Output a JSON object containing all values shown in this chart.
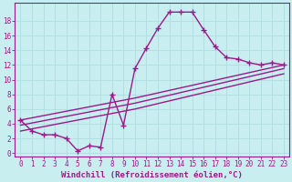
{
  "background_color": "#c8eef0",
  "grid_color": "#b0dde0",
  "line_color": "#9b1a8a",
  "marker": "+",
  "markersize": 4,
  "linewidth": 1.0,
  "xlabel": "Windchill (Refroidissement éolien,°C)",
  "xlabel_fontsize": 6.5,
  "ytick_values": [
    0,
    2,
    4,
    6,
    8,
    10,
    12,
    14,
    16,
    18
  ],
  "xticklabels": [
    "0",
    "1",
    "2",
    "3",
    "4",
    "5",
    "6",
    "7",
    "8",
    "9",
    "10",
    "11",
    "12",
    "13",
    "14",
    "15",
    "16",
    "17",
    "18",
    "19",
    "20",
    "21",
    "22",
    "23"
  ],
  "ylim": [
    -0.5,
    20.5
  ],
  "xlim": [
    -0.5,
    23.5
  ],
  "series1_x": [
    0,
    1,
    2,
    3,
    4,
    5,
    6,
    7,
    8,
    9,
    10,
    11,
    12,
    13,
    14,
    15,
    16,
    17,
    18,
    19,
    20,
    21,
    22,
    23
  ],
  "series1_y": [
    4.5,
    3.0,
    2.5,
    2.5,
    2.0,
    0.3,
    1.0,
    0.8,
    8.0,
    3.8,
    11.5,
    14.3,
    17.0,
    19.2,
    19.2,
    19.2,
    16.8,
    14.5,
    13.0,
    12.8,
    12.3,
    12.0,
    12.3,
    12.0
  ],
  "series2_x": [
    0,
    10,
    23
  ],
  "series2_y": [
    4.5,
    7.5,
    12.0
  ],
  "series3_x": [
    0,
    10,
    23
  ],
  "series3_y": [
    3.8,
    6.8,
    11.5
  ],
  "series4_x": [
    0,
    10,
    23
  ],
  "series4_y": [
    3.0,
    6.0,
    10.8
  ],
  "tick_fontsize": 5.5,
  "markeredgewidth": 1.0
}
